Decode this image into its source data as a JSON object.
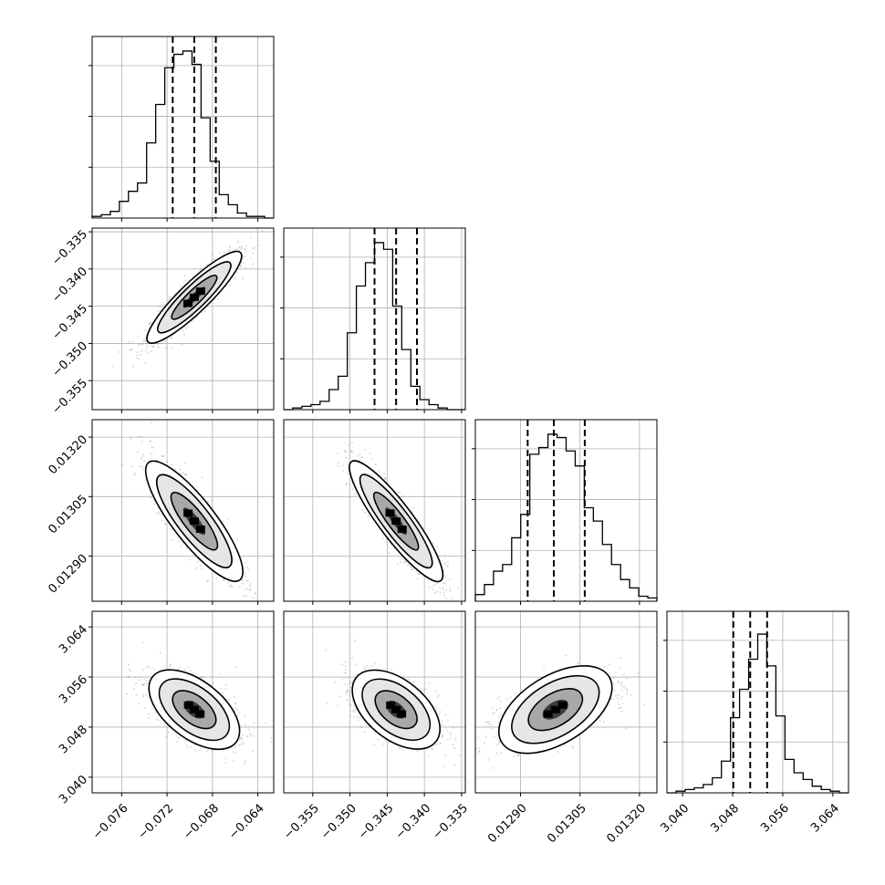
{
  "chart_data": {
    "type": "corner",
    "parameters": [
      {
        "ticks": [
          -0.076,
          -0.072,
          -0.068,
          -0.064
        ],
        "tick_labels": [
          "−0.076",
          "−0.072",
          "−0.068",
          "−0.064"
        ],
        "xlim": [
          -0.0786,
          -0.0626
        ],
        "quantiles": [
          -0.0715,
          -0.0696,
          -0.0677
        ],
        "hist_values": [
          0.01,
          0.02,
          0.04,
          0.1,
          0.16,
          0.21,
          0.45,
          0.68,
          0.9,
          0.98,
          1.0,
          0.92,
          0.6,
          0.34,
          0.14,
          0.08,
          0.03,
          0.01,
          0.01,
          0.0
        ]
      },
      {
        "ticks": [
          -0.355,
          -0.35,
          -0.345,
          -0.34,
          -0.335
        ],
        "tick_labels": [
          "−0.355",
          "−0.350",
          "−0.345",
          "−0.340",
          "−0.335"
        ],
        "ylabels": [
          "−0.355",
          "−0.350",
          "−0.345",
          "−0.340",
          "−0.335"
        ],
        "xlim": [
          -0.3589,
          -0.3345
        ],
        "quantiles": [
          -0.3467,
          -0.3438,
          -0.341
        ],
        "hist_values": [
          0.0,
          0.01,
          0.02,
          0.03,
          0.05,
          0.12,
          0.2,
          0.46,
          0.74,
          0.88,
          1.0,
          0.96,
          0.62,
          0.36,
          0.14,
          0.06,
          0.03,
          0.01,
          0.0,
          0.0
        ]
      },
      {
        "ticks": [
          0.0129,
          0.01305,
          0.0132
        ],
        "tick_labels": [
          "0.01290",
          "0.01305",
          "0.01320"
        ],
        "xlim": [
          0.012786,
          0.013244
        ],
        "quantiles": [
          0.012918,
          0.012984,
          0.013062
        ],
        "hist_values": [
          0.04,
          0.1,
          0.18,
          0.22,
          0.38,
          0.52,
          0.88,
          0.92,
          1.0,
          0.98,
          0.9,
          0.81,
          0.56,
          0.48,
          0.34,
          0.22,
          0.13,
          0.08,
          0.03,
          0.02
        ]
      },
      {
        "ticks": [
          3.04,
          3.048,
          3.056,
          3.064
        ],
        "tick_labels": [
          "3.040",
          "3.048",
          "3.056",
          "3.064"
        ],
        "ylabels": [
          "3.040",
          "3.048",
          "3.056",
          "3.064"
        ],
        "xlim": [
          3.0375,
          3.0665
        ],
        "quantiles": [
          3.0481,
          3.0508,
          3.0535
        ],
        "hist_values": [
          0.0,
          0.01,
          0.02,
          0.03,
          0.05,
          0.09,
          0.19,
          0.45,
          0.62,
          0.8,
          0.95,
          0.76,
          0.46,
          0.2,
          0.12,
          0.08,
          0.04,
          0.02,
          0.01,
          0.0
        ]
      }
    ],
    "pairs": [
      {
        "x": 0,
        "y": 1,
        "mean": [
          -0.0696,
          -0.3438
        ],
        "sd": [
          0.0019,
          0.0028
        ],
        "rho": 0.9
      },
      {
        "x": 0,
        "y": 2,
        "mean": [
          -0.0696,
          0.012988
        ],
        "sd": [
          0.0019,
          7e-05
        ],
        "rho": -0.85
      },
      {
        "x": 1,
        "y": 2,
        "mean": [
          -0.3438,
          0.012988
        ],
        "sd": [
          0.0028,
          7e-05
        ],
        "rho": -0.9
      },
      {
        "x": 0,
        "y": 3,
        "mean": [
          -0.0696,
          3.0508
        ],
        "sd": [
          0.0019,
          0.0027
        ],
        "rho": -0.55
      },
      {
        "x": 1,
        "y": 3,
        "mean": [
          -0.3438,
          3.0508
        ],
        "sd": [
          0.0028,
          0.0027
        ],
        "rho": -0.5
      },
      {
        "x": 2,
        "y": 3,
        "mean": [
          0.012988,
          3.0508
        ],
        "sd": [
          7e-05,
          0.0027
        ],
        "rho": 0.55
      }
    ],
    "grid": true,
    "colors": {
      "frame": "#000000",
      "grid": "#b0b0b0",
      "points": "#808080",
      "density_dark": "#000000"
    }
  }
}
